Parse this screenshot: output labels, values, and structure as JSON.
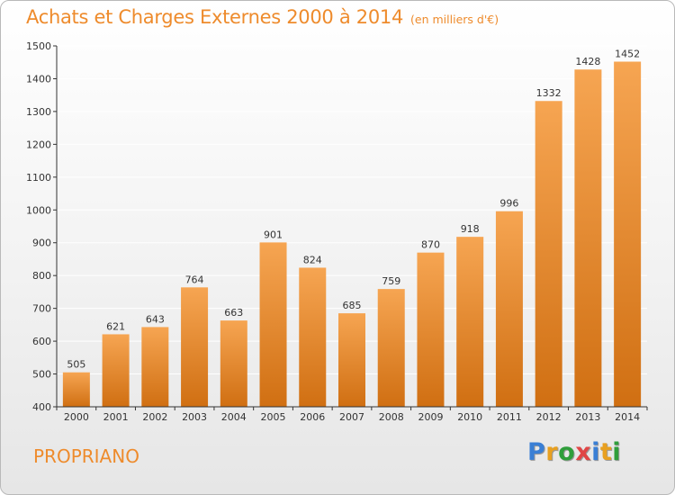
{
  "header": {
    "title": "Achats et Charges Externes 2000 à 2014",
    "unit": "(en milliers d'€)"
  },
  "footer": {
    "location": "PROPRIANO",
    "brand_letters": [
      "P",
      "r",
      "o",
      "x",
      "i",
      "t",
      "i"
    ],
    "brand_colors": [
      "#3a7fd5",
      "#e8a020",
      "#2f9e3b",
      "#e04646",
      "#3a7fd5",
      "#e8a020",
      "#2f9e3b"
    ]
  },
  "colors": {
    "bar_light": "#f6a552",
    "bar_dark": "#d06f12",
    "title": "#ee8b2c",
    "grid": "#ffffff",
    "axis": "#333333"
  },
  "chart_data": {
    "type": "bar",
    "title": "Achats et Charges Externes 2000 à 2014",
    "subtitle": "(en milliers d'€)",
    "xlabel": "",
    "ylabel": "",
    "categories": [
      "2000",
      "2001",
      "2002",
      "2003",
      "2004",
      "2005",
      "2006",
      "2007",
      "2008",
      "2009",
      "2010",
      "2011",
      "2012",
      "2013",
      "2014"
    ],
    "values": [
      505,
      621,
      643,
      764,
      663,
      901,
      824,
      685,
      759,
      870,
      918,
      996,
      1332,
      1428,
      1452
    ],
    "ylim": [
      400,
      1500
    ],
    "yticks": [
      400,
      500,
      600,
      700,
      800,
      900,
      1000,
      1100,
      1200,
      1300,
      1400,
      1500
    ],
    "grid": true,
    "legend": "none"
  }
}
